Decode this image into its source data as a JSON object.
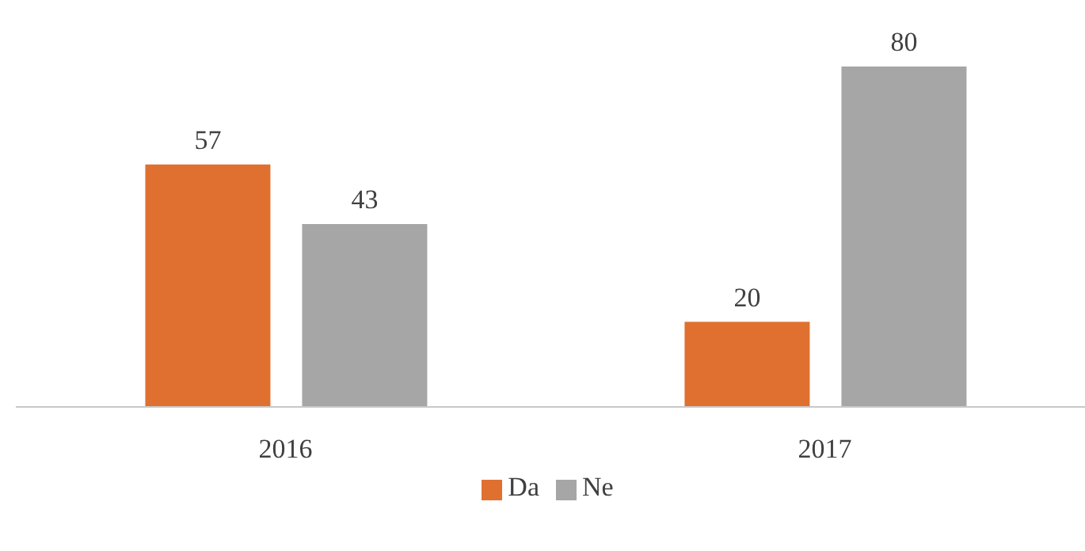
{
  "chart_data": {
    "type": "bar",
    "categories": [
      "2016",
      "2017"
    ],
    "series": [
      {
        "name": "Da",
        "color": "#e07030",
        "values": [
          57,
          20
        ]
      },
      {
        "name": "Ne",
        "color": "#a6a6a6",
        "values": [
          43,
          80
        ]
      }
    ],
    "data_labels": true,
    "legend": "bottom",
    "grid": false
  }
}
